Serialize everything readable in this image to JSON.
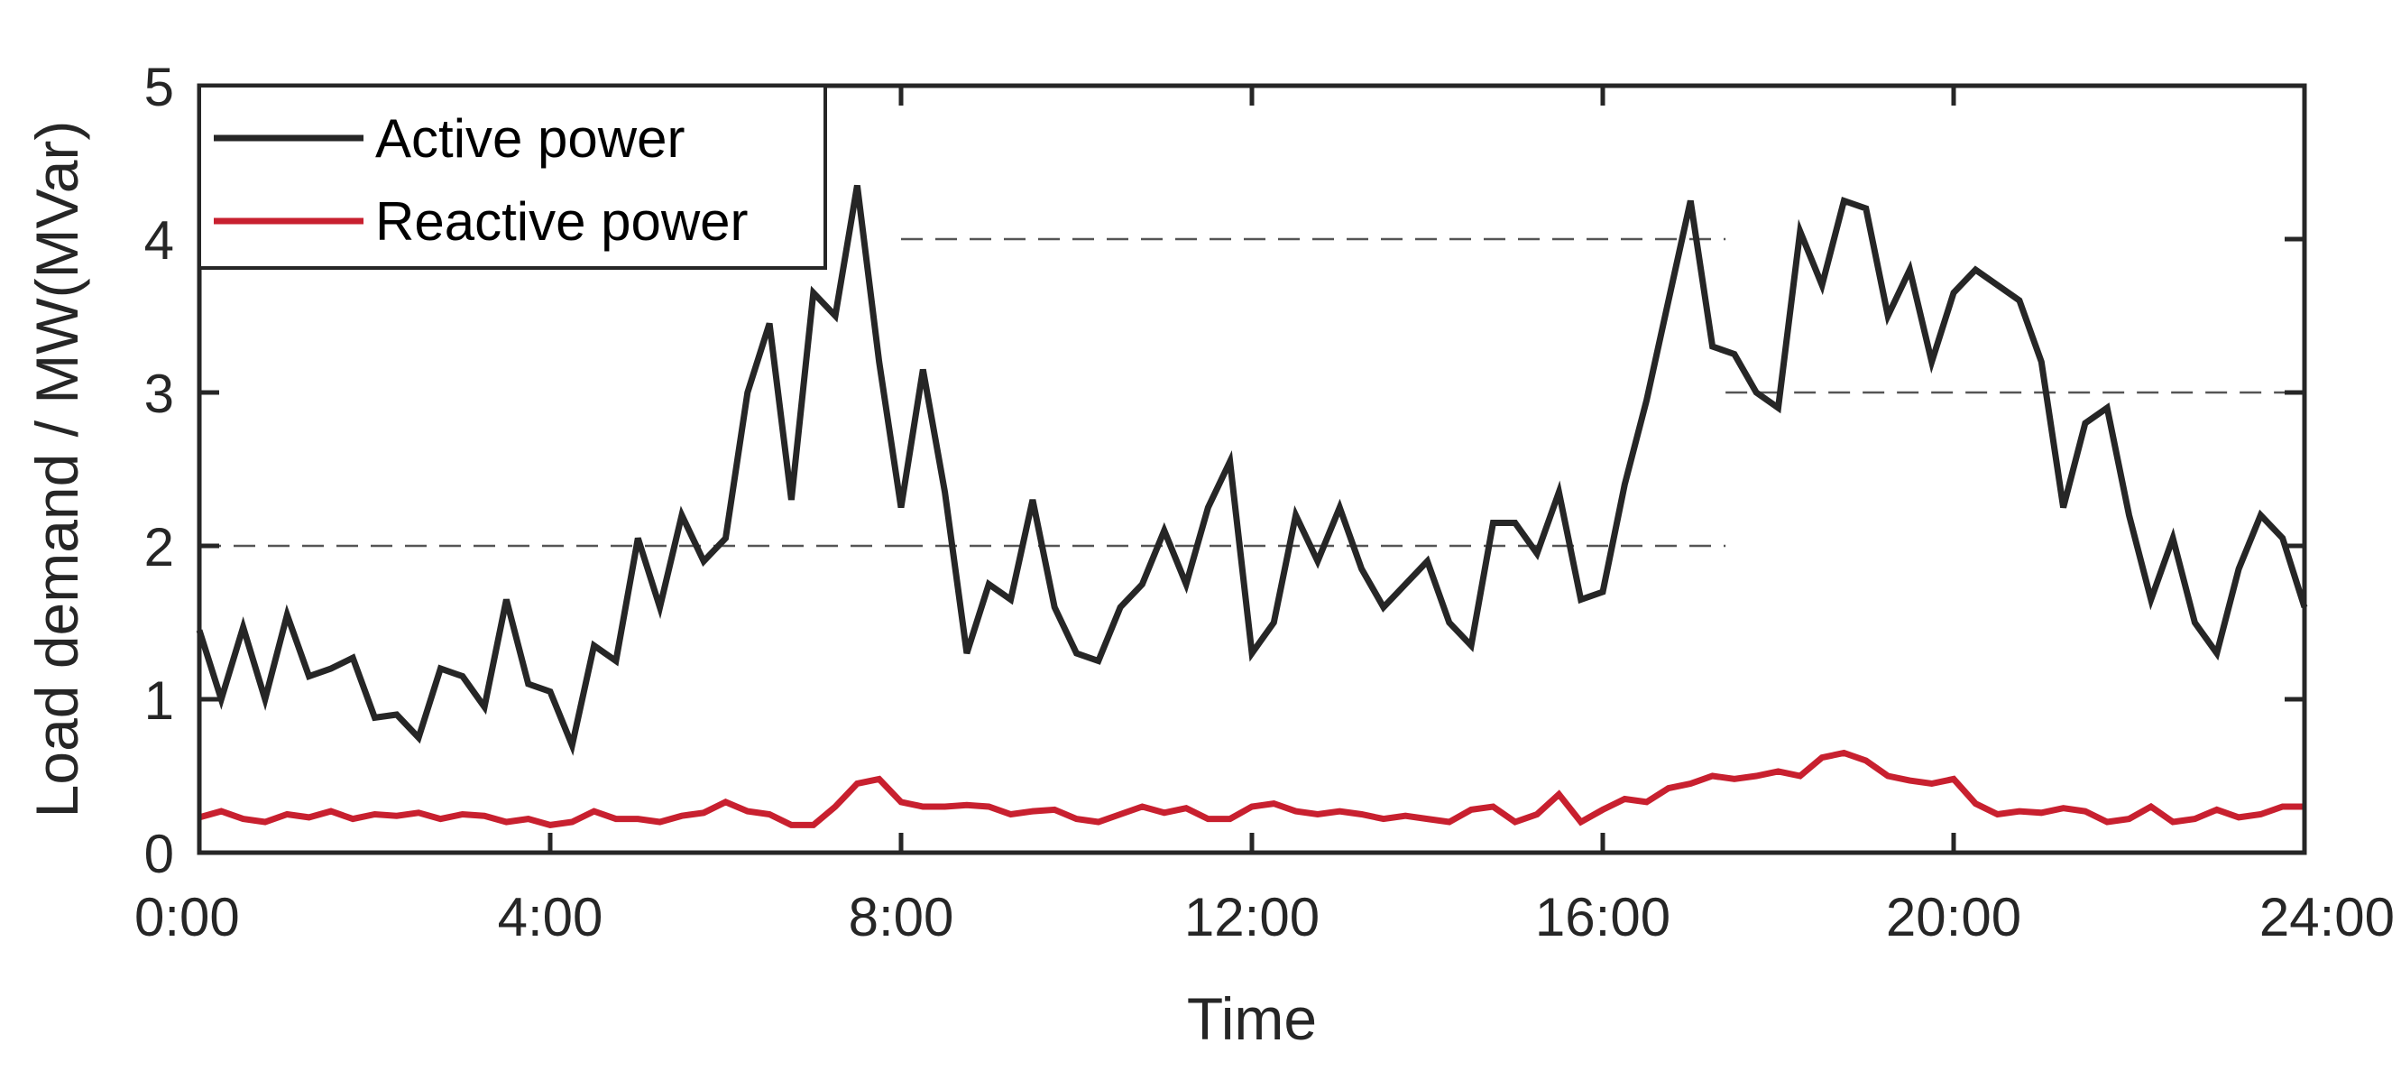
{
  "chart_data": {
    "type": "line",
    "xlabel": "Time",
    "ylabel": "Load demand / MW(MVar)",
    "xlim": [
      0,
      24
    ],
    "ylim": [
      0,
      5
    ],
    "x_ticks": [
      {
        "value": 0,
        "label": "0:00"
      },
      {
        "value": 4,
        "label": "4:00"
      },
      {
        "value": 8,
        "label": "8:00"
      },
      {
        "value": 12,
        "label": "12:00"
      },
      {
        "value": 16,
        "label": "16:00"
      },
      {
        "value": 20,
        "label": "20:00"
      },
      {
        "value": 24,
        "label": "24:00"
      }
    ],
    "y_ticks": [
      {
        "value": 0,
        "label": "0"
      },
      {
        "value": 1,
        "label": "1"
      },
      {
        "value": 2,
        "label": "2"
      },
      {
        "value": 3,
        "label": "3"
      },
      {
        "value": 4,
        "label": "4"
      },
      {
        "value": 5,
        "label": "5"
      }
    ],
    "grid": false,
    "legend": "top-left",
    "reference_lines": [
      {
        "x_start": 0,
        "x_end": 8,
        "y": 2
      },
      {
        "x_start": 8,
        "x_end": 17.4,
        "y": 4
      },
      {
        "x_start": 8,
        "x_end": 17.4,
        "y": 2
      },
      {
        "x_start": 17.4,
        "x_end": 24,
        "y": 3
      }
    ],
    "series": [
      {
        "name": "Active power",
        "color": "#262626",
        "x": [
          0,
          0.25,
          0.5,
          0.75,
          1,
          1.25,
          1.5,
          1.75,
          2,
          2.25,
          2.5,
          2.75,
          3,
          3.25,
          3.5,
          3.75,
          4,
          4.25,
          4.5,
          4.75,
          5,
          5.25,
          5.5,
          5.75,
          6,
          6.25,
          6.5,
          6.75,
          7,
          7.25,
          7.5,
          7.75,
          8,
          8.25,
          8.5,
          8.75,
          9,
          9.25,
          9.5,
          9.75,
          10,
          10.25,
          10.5,
          10.75,
          11,
          11.25,
          11.5,
          11.75,
          12,
          12.25,
          12.5,
          12.75,
          13,
          13.25,
          13.5,
          13.75,
          14,
          14.25,
          14.5,
          14.75,
          15,
          15.25,
          15.5,
          15.75,
          16,
          16.25,
          16.5,
          16.75,
          17,
          17.25,
          17.5,
          17.75,
          18,
          18.25,
          18.5,
          18.75,
          19,
          19.25,
          19.5,
          19.75,
          20,
          20.25,
          20.5,
          20.75,
          21,
          21.25,
          21.5,
          21.75,
          22,
          22.25,
          22.5,
          22.75,
          23,
          23.25,
          23.5,
          23.75,
          24
        ],
        "values": [
          1.45,
          1.0,
          1.47,
          1.0,
          1.55,
          1.15,
          1.2,
          1.27,
          0.88,
          0.9,
          0.75,
          1.2,
          1.15,
          0.95,
          1.65,
          1.1,
          1.05,
          0.7,
          1.35,
          1.25,
          2.05,
          1.6,
          2.2,
          1.9,
          2.05,
          3.0,
          3.45,
          2.3,
          3.65,
          3.5,
          4.35,
          3.2,
          2.25,
          3.15,
          2.35,
          1.3,
          1.75,
          1.65,
          2.3,
          1.6,
          1.3,
          1.25,
          1.6,
          1.75,
          2.1,
          1.75,
          2.25,
          2.55,
          1.3,
          1.5,
          2.2,
          1.9,
          2.25,
          1.85,
          1.6,
          1.75,
          1.9,
          1.5,
          1.35,
          2.15,
          2.15,
          1.95,
          2.35,
          1.65,
          1.7,
          2.4,
          2.95,
          3.6,
          4.25,
          3.3,
          3.25,
          3.0,
          2.9,
          4.05,
          3.7,
          4.25,
          4.2,
          3.5,
          3.8,
          3.2,
          3.65,
          3.8,
          3.7,
          3.6,
          3.2,
          2.25,
          2.8,
          2.9,
          2.2,
          1.65,
          2.05,
          1.5,
          1.3,
          1.85,
          2.2,
          2.05,
          1.6
        ]
      },
      {
        "name": "Reactive power",
        "color": "#c8202f",
        "x": [
          0,
          0.25,
          0.5,
          0.75,
          1,
          1.25,
          1.5,
          1.75,
          2,
          2.25,
          2.5,
          2.75,
          3,
          3.25,
          3.5,
          3.75,
          4,
          4.25,
          4.5,
          4.75,
          5,
          5.25,
          5.5,
          5.75,
          6,
          6.25,
          6.5,
          6.75,
          7,
          7.25,
          7.5,
          7.75,
          8,
          8.25,
          8.5,
          8.75,
          9,
          9.25,
          9.5,
          9.75,
          10,
          10.25,
          10.5,
          10.75,
          11,
          11.25,
          11.5,
          11.75,
          12,
          12.25,
          12.5,
          12.75,
          13,
          13.25,
          13.5,
          13.75,
          14,
          14.25,
          14.5,
          14.75,
          15,
          15.25,
          15.5,
          15.75,
          16,
          16.25,
          16.5,
          16.75,
          17,
          17.25,
          17.5,
          17.75,
          18,
          18.25,
          18.5,
          18.75,
          19,
          19.25,
          19.5,
          19.75,
          20,
          20.25,
          20.5,
          20.75,
          21,
          21.25,
          21.5,
          21.75,
          22,
          22.25,
          22.5,
          22.75,
          23,
          23.25,
          23.5,
          23.75,
          24
        ],
        "values": [
          0.23,
          0.27,
          0.22,
          0.2,
          0.25,
          0.23,
          0.27,
          0.22,
          0.25,
          0.24,
          0.26,
          0.22,
          0.25,
          0.24,
          0.2,
          0.22,
          0.18,
          0.2,
          0.27,
          0.22,
          0.22,
          0.2,
          0.24,
          0.26,
          0.33,
          0.27,
          0.25,
          0.18,
          0.18,
          0.3,
          0.45,
          0.48,
          0.33,
          0.3,
          0.3,
          0.31,
          0.3,
          0.25,
          0.27,
          0.28,
          0.22,
          0.2,
          0.25,
          0.3,
          0.26,
          0.29,
          0.22,
          0.22,
          0.3,
          0.32,
          0.27,
          0.25,
          0.27,
          0.25,
          0.22,
          0.24,
          0.22,
          0.2,
          0.28,
          0.3,
          0.2,
          0.25,
          0.38,
          0.2,
          0.28,
          0.35,
          0.33,
          0.42,
          0.45,
          0.5,
          0.48,
          0.5,
          0.53,
          0.5,
          0.62,
          0.65,
          0.6,
          0.5,
          0.47,
          0.45,
          0.48,
          0.32,
          0.25,
          0.27,
          0.26,
          0.29,
          0.27,
          0.2,
          0.22,
          0.3,
          0.2,
          0.22,
          0.28,
          0.23,
          0.25,
          0.3,
          0.3
        ]
      }
    ]
  }
}
